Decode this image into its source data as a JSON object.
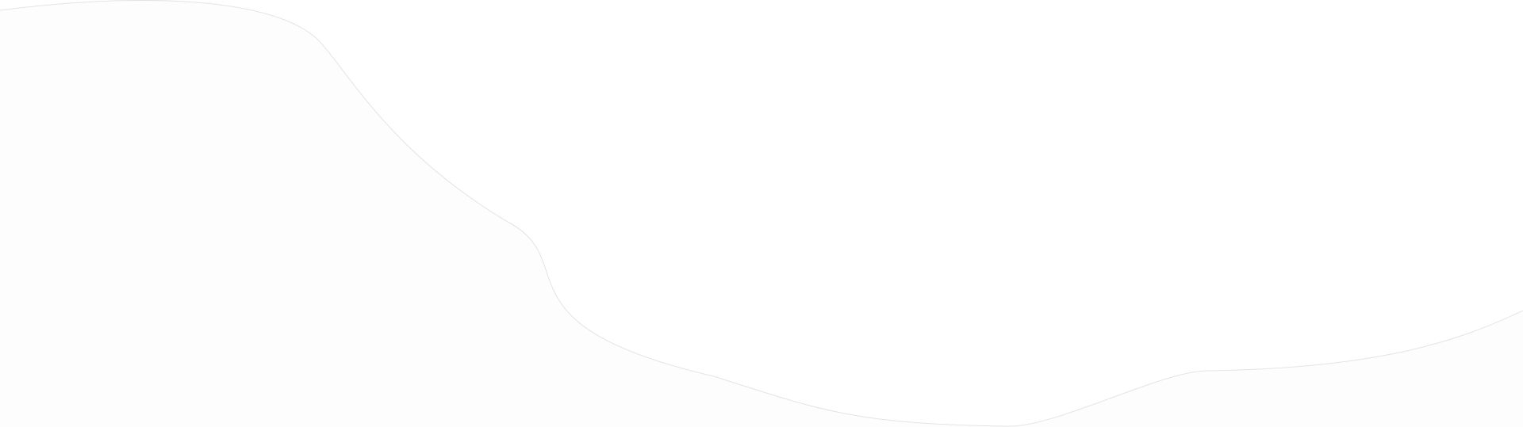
{
  "colors": {
    "background": "#ffffff",
    "shape_fill": "#fdfdfd",
    "shape_stroke": "#e4e4e4"
  }
}
